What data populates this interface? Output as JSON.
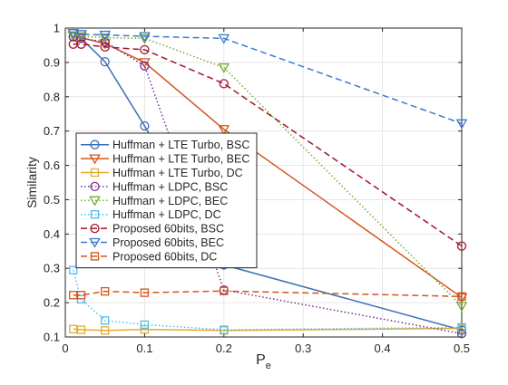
{
  "chart_data": {
    "type": "line",
    "xlabel": "P",
    "xlabel_subscript": "e",
    "ylabel": "Similarity",
    "xlim": [
      0,
      0.5
    ],
    "ylim": [
      0.1,
      1
    ],
    "xticks": [
      0,
      0.1,
      0.2,
      0.3,
      0.4,
      0.5
    ],
    "xtick_labels": [
      "0",
      "0.1",
      "0.2",
      "0.3",
      "0.4",
      "0.5"
    ],
    "yticks": [
      0.1,
      0.2,
      0.3,
      0.4,
      0.5,
      0.6,
      0.7,
      0.8,
      0.9,
      1
    ],
    "ytick_labels": [
      "0.1",
      "0.2",
      "0.3",
      "0.4",
      "0.5",
      "0.6",
      "0.7",
      "0.8",
      "0.9",
      "1"
    ],
    "grid": true,
    "legend_position": "left-center",
    "x": [
      0.01,
      0.02,
      0.05,
      0.1,
      0.2,
      0.5
    ],
    "series": [
      {
        "name": "Huffman + LTE Turbo, BSC",
        "color": "#3b6fb6",
        "dash": "solid",
        "marker": "circle",
        "values": [
          0.975,
          0.97,
          0.902,
          0.715,
          0.31,
          0.12
        ]
      },
      {
        "name": "Huffman + LTE Turbo, BEC",
        "color": "#d4541b",
        "dash": "solid",
        "marker": "triangle-down",
        "values": [
          0.978,
          0.972,
          0.955,
          0.9,
          0.705,
          0.215
        ]
      },
      {
        "name": "Huffman + LTE Turbo, DC",
        "color": "#e5ab2e",
        "dash": "solid",
        "marker": "square",
        "values": [
          0.123,
          0.121,
          0.119,
          0.122,
          0.119,
          0.125
        ]
      },
      {
        "name": "Huffman + LDPC, BSC",
        "color": "#7a2e8c",
        "dash": "dotted",
        "marker": "circle",
        "values": [
          0.975,
          0.97,
          0.96,
          0.89,
          0.237,
          0.11
        ]
      },
      {
        "name": "Huffman + LDPC, BEC",
        "color": "#76ab2f",
        "dash": "dotted",
        "marker": "triangle-down",
        "values": [
          0.978,
          0.976,
          0.972,
          0.97,
          0.885,
          0.19
        ]
      },
      {
        "name": "Huffman + LDPC, DC",
        "color": "#4dbeee",
        "dash": "dotted",
        "marker": "square",
        "values": [
          0.295,
          0.21,
          0.148,
          0.136,
          0.121,
          0.128
        ]
      },
      {
        "name": "Proposed 60bits, BSC",
        "color": "#a2142f",
        "dash": "dashed",
        "marker": "circle",
        "values": [
          0.953,
          0.953,
          0.945,
          0.937,
          0.838,
          0.365
        ]
      },
      {
        "name": "Proposed 60bits, BEC",
        "color": "#3b7bd0",
        "dash": "dashed",
        "marker": "triangle-down",
        "values": [
          0.985,
          0.982,
          0.98,
          0.976,
          0.97,
          0.722
        ]
      },
      {
        "name": "Proposed 60bits, DC",
        "color": "#d4541b",
        "dash": "dashed",
        "marker": "square",
        "values": [
          0.222,
          0.222,
          0.233,
          0.229,
          0.234,
          0.218
        ]
      }
    ]
  }
}
